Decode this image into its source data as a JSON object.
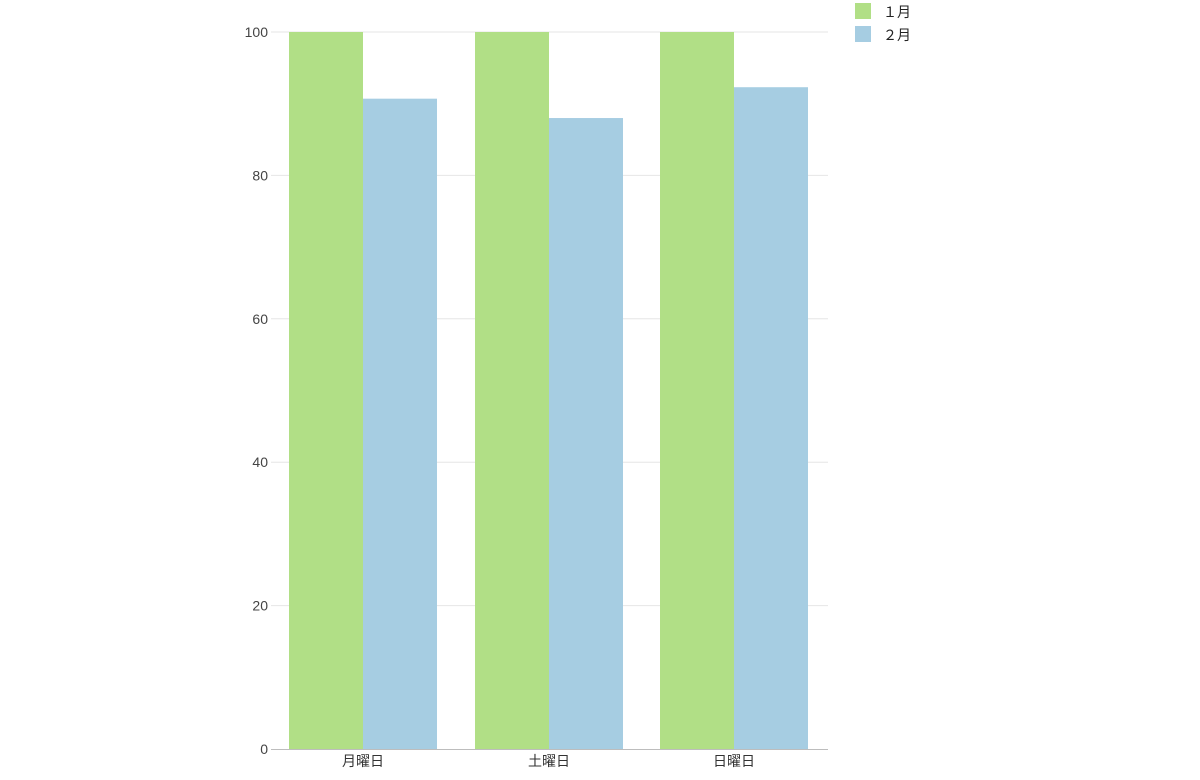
{
  "chart_data": {
    "type": "bar",
    "title": "",
    "xlabel": "",
    "ylabel": "",
    "categories": [
      "月曜日",
      "土曜日",
      "日曜日"
    ],
    "series": [
      {
        "name": "１月",
        "values": [
          100,
          100,
          100
        ],
        "color": "#b1df86"
      },
      {
        "name": "２月",
        "values": [
          90.7,
          88.0,
          92.3
        ],
        "color": "#a6cde2"
      }
    ],
    "ylim": [
      0,
      100
    ],
    "yticks": [
      0,
      20,
      40,
      60,
      80,
      100
    ],
    "grid": true,
    "legend_position": "top-right"
  }
}
